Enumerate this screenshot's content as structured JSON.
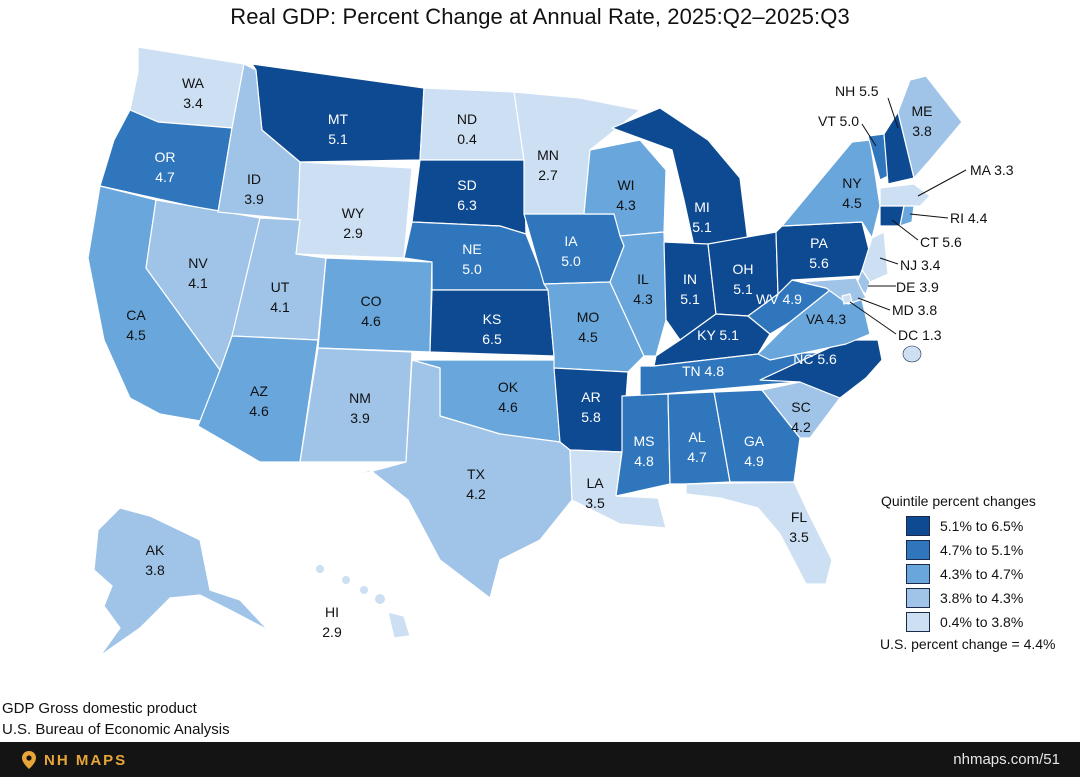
{
  "title": "Real GDP: Percent Change at Annual Rate, 2025:Q2–2025:Q3",
  "colors": {
    "q1": "#0d4a91",
    "q2": "#2f76bd",
    "q3": "#68a6dc",
    "q4": "#a0c4e8",
    "q5": "#cddff2",
    "outline": "#ffffff",
    "label_dark": "#ffffff",
    "label_light": "#111111"
  },
  "legend": {
    "title": "Quintile percent changes",
    "items": [
      {
        "label": "5.1% to 6.5%",
        "color": "#0d4a91"
      },
      {
        "label": "4.7% to 5.1%",
        "color": "#2f76bd"
      },
      {
        "label": "4.3% to 4.7%",
        "color": "#68a6dc"
      },
      {
        "label": "3.8% to 4.3%",
        "color": "#a0c4e8"
      },
      {
        "label": "0.4% to 3.8%",
        "color": "#cddff2"
      }
    ],
    "us_change": "U.S. percent change = 4.4%"
  },
  "states": [
    {
      "abbr": "WA",
      "value": "3.4"
    },
    {
      "abbr": "OR",
      "value": "4.7"
    },
    {
      "abbr": "CA",
      "value": "4.5"
    },
    {
      "abbr": "NV",
      "value": "4.1"
    },
    {
      "abbr": "ID",
      "value": "3.9"
    },
    {
      "abbr": "MT",
      "value": "5.1"
    },
    {
      "abbr": "WY",
      "value": "2.9"
    },
    {
      "abbr": "UT",
      "value": "4.1"
    },
    {
      "abbr": "AZ",
      "value": "4.6"
    },
    {
      "abbr": "CO",
      "value": "4.6"
    },
    {
      "abbr": "NM",
      "value": "3.9"
    },
    {
      "abbr": "ND",
      "value": "0.4"
    },
    {
      "abbr": "SD",
      "value": "6.3"
    },
    {
      "abbr": "NE",
      "value": "5.0"
    },
    {
      "abbr": "KS",
      "value": "6.5"
    },
    {
      "abbr": "OK",
      "value": "4.6"
    },
    {
      "abbr": "TX",
      "value": "4.2"
    },
    {
      "abbr": "MN",
      "value": "2.7"
    },
    {
      "abbr": "IA",
      "value": "5.0"
    },
    {
      "abbr": "MO",
      "value": "4.5"
    },
    {
      "abbr": "AR",
      "value": "5.8"
    },
    {
      "abbr": "LA",
      "value": "3.5"
    },
    {
      "abbr": "WI",
      "value": "4.3"
    },
    {
      "abbr": "IL",
      "value": "4.3"
    },
    {
      "abbr": "MI",
      "value": "5.1"
    },
    {
      "abbr": "IN",
      "value": "5.1"
    },
    {
      "abbr": "OH",
      "value": "5.1"
    },
    {
      "abbr": "KY",
      "value": "5.1"
    },
    {
      "abbr": "TN",
      "value": "4.8"
    },
    {
      "abbr": "MS",
      "value": "4.8"
    },
    {
      "abbr": "AL",
      "value": "4.7"
    },
    {
      "abbr": "GA",
      "value": "4.9"
    },
    {
      "abbr": "FL",
      "value": "3.5"
    },
    {
      "abbr": "SC",
      "value": "4.2"
    },
    {
      "abbr": "NC",
      "value": "5.6"
    },
    {
      "abbr": "VA",
      "value": "4.3"
    },
    {
      "abbr": "WV",
      "value": "4.9"
    },
    {
      "abbr": "PA",
      "value": "5.6"
    },
    {
      "abbr": "NY",
      "value": "4.5"
    },
    {
      "abbr": "VT",
      "value": "5.0"
    },
    {
      "abbr": "NH",
      "value": "5.5"
    },
    {
      "abbr": "ME",
      "value": "3.8"
    },
    {
      "abbr": "MA",
      "value": "3.3"
    },
    {
      "abbr": "RI",
      "value": "4.4"
    },
    {
      "abbr": "CT",
      "value": "5.6"
    },
    {
      "abbr": "NJ",
      "value": "3.4"
    },
    {
      "abbr": "DE",
      "value": "3.9"
    },
    {
      "abbr": "MD",
      "value": "3.8"
    },
    {
      "abbr": "DC",
      "value": "1.3"
    },
    {
      "abbr": "AK",
      "value": "3.8"
    },
    {
      "abbr": "HI",
      "value": "2.9"
    }
  ],
  "footnotes": {
    "line1": "GDP Gross domestic product",
    "line2": "U.S. Bureau of Economic Analysis"
  },
  "footer": {
    "brand": "NH MAPS",
    "url": "nhmaps.com/51"
  }
}
